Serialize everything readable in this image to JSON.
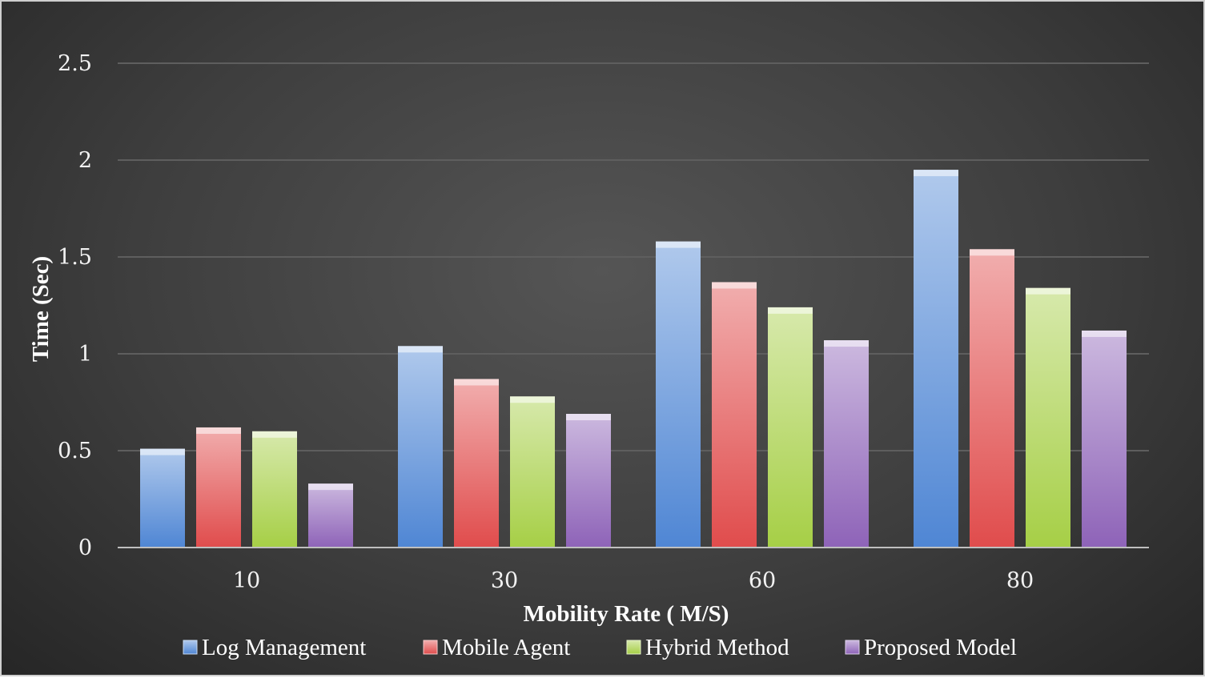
{
  "chart_data": {
    "type": "bar",
    "title": "",
    "xlabel": "Mobility Rate ( M/S)",
    "ylabel": "Time  (Sec)",
    "categories": [
      "10",
      "30",
      "60",
      "80"
    ],
    "ylim": [
      0,
      2.5
    ],
    "yticks": [
      "0",
      "0.5",
      "1",
      "1.5",
      "2",
      "2.5"
    ],
    "grid": true,
    "legend_position": "bottom",
    "series": [
      {
        "name": "Log Management",
        "color": "#4f86d4",
        "values": [
          0.51,
          1.04,
          1.58,
          1.95
        ]
      },
      {
        "name": "Mobile Agent",
        "color": "#e04c4c",
        "values": [
          0.62,
          0.87,
          1.37,
          1.54
        ]
      },
      {
        "name": "Hybrid Method",
        "color": "#a6cf46",
        "values": [
          0.6,
          0.78,
          1.24,
          1.34
        ]
      },
      {
        "name": "Proposed Model",
        "color": "#8e63b8",
        "values": [
          0.33,
          0.69,
          1.07,
          1.12
        ]
      }
    ]
  }
}
